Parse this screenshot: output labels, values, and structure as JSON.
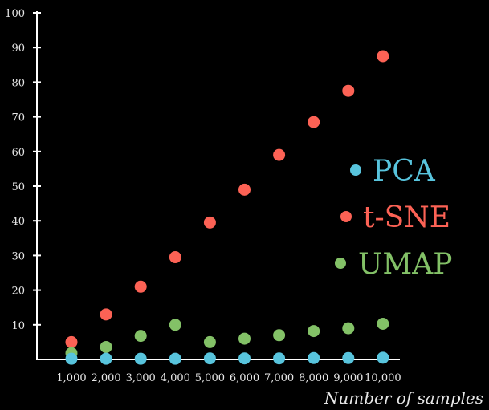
{
  "chart_data": {
    "type": "scatter",
    "title": "",
    "xlabel": "Number of samples",
    "ylabel": "",
    "x": [
      1000,
      2000,
      3000,
      4000,
      5000,
      6000,
      7000,
      8000,
      9000,
      10000
    ],
    "x_tick_labels": [
      "1,000",
      "2,000",
      "3,000",
      "4,000",
      "5,000",
      "6,000",
      "7,000",
      "8,000",
      "9,000",
      "10,000"
    ],
    "y_ticks": [
      10,
      20,
      30,
      40,
      50,
      60,
      70,
      80,
      90,
      100
    ],
    "xlim": [
      0,
      10300
    ],
    "ylim": [
      0,
      100
    ],
    "grid": false,
    "legend_position": "right",
    "series": [
      {
        "name": "PCA",
        "color": "#58c4dd",
        "values": [
          0.2,
          0.2,
          0.2,
          0.2,
          0.3,
          0.3,
          0.3,
          0.4,
          0.4,
          0.5
        ]
      },
      {
        "name": "t-SNE",
        "color": "#fc6255",
        "values": [
          5,
          13,
          21,
          29.5,
          39.5,
          49,
          59,
          68.5,
          77.5,
          87.5
        ]
      },
      {
        "name": "UMAP",
        "color": "#83c167",
        "values": [
          1.8,
          3.6,
          6.8,
          10,
          5,
          6,
          7,
          8.2,
          9,
          10.3
        ]
      }
    ]
  }
}
